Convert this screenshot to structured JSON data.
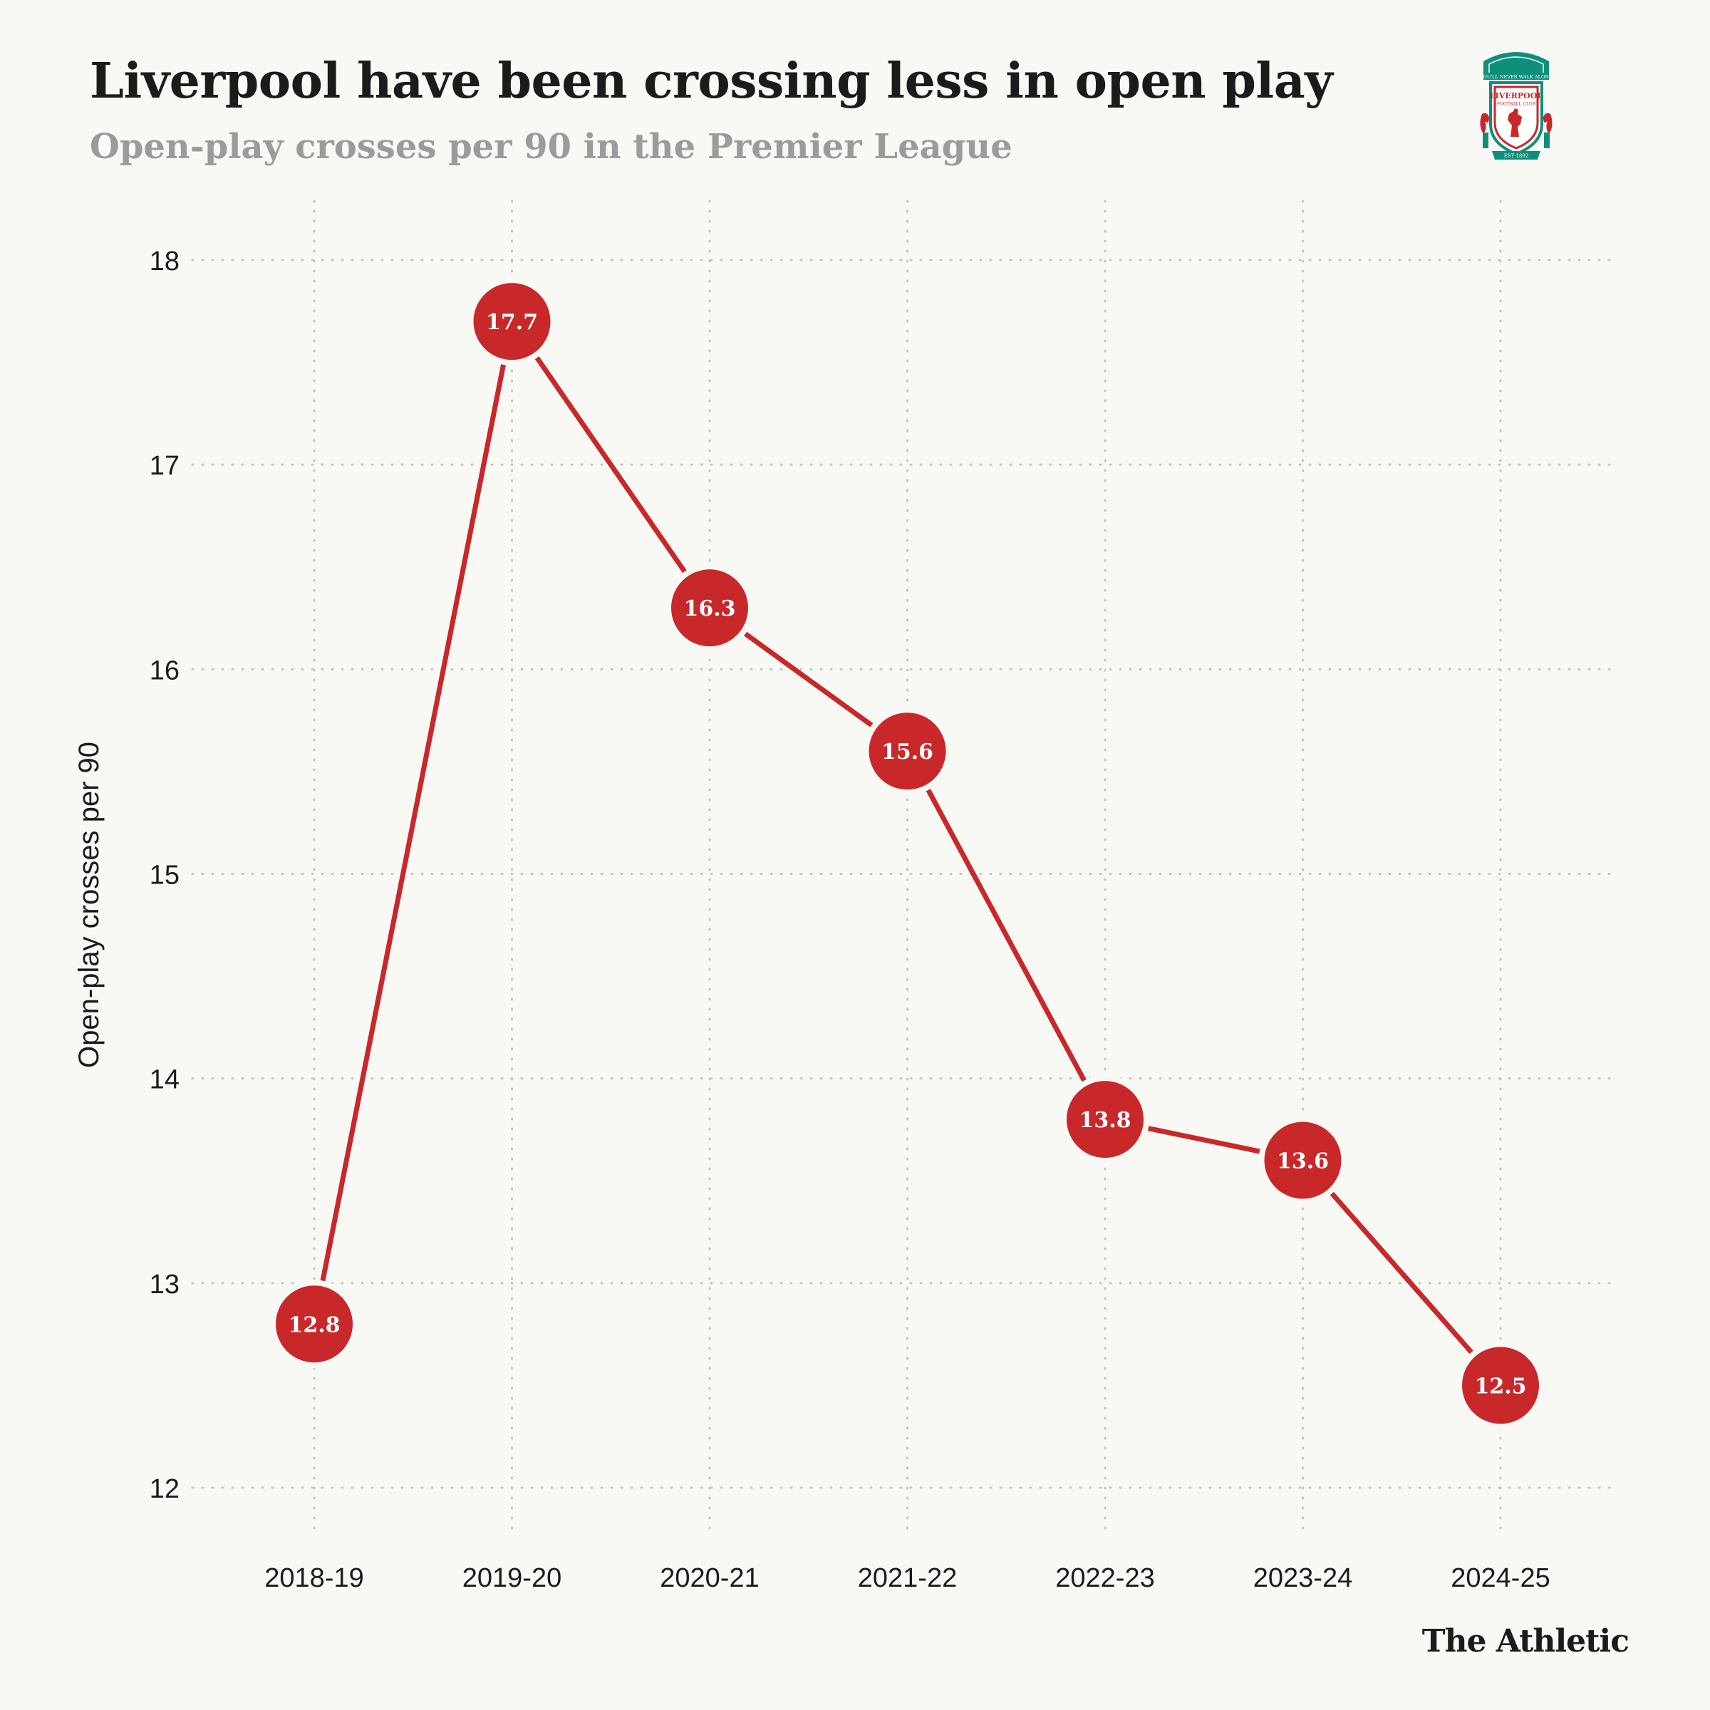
{
  "header": {
    "title": "Liverpool have been crossing less in open play",
    "subtitle": "Open-play crosses per 90 in the Premier League"
  },
  "crest": {
    "icon": "liverpool-fc-crest-icon",
    "motto": "YOU'LL NEVER WALK ALONE",
    "name": "LIVERPOOL",
    "sub": "FOOTBALL CLUB",
    "est": "EST·1892"
  },
  "brand": "The Athletic",
  "colors": {
    "background": "#f8f8f5",
    "line": "#c8282a",
    "marker": "#c8282a",
    "marker_text": "#ffffff",
    "grid": "#c4c4c4"
  },
  "chart_data": {
    "type": "line",
    "title": "Liverpool have been crossing less in open play",
    "subtitle": "Open-play crosses per 90 in the Premier League",
    "xlabel": "",
    "ylabel": "Open-play crosses per 90",
    "categories": [
      "2018-19",
      "2019-20",
      "2020-21",
      "2021-22",
      "2022-23",
      "2023-24",
      "2024-25"
    ],
    "series": [
      {
        "values": [
          12.8,
          17.7,
          16.3,
          15.6,
          13.8,
          13.6,
          12.5
        ],
        "labels": [
          "12.8",
          "17.7",
          "16.3",
          "15.6",
          "13.8",
          "13.6",
          "12.5"
        ]
      }
    ],
    "yticks": [
      12,
      13,
      14,
      15,
      16,
      17,
      18
    ],
    "ytick_labels": [
      "12",
      "13",
      "14",
      "15",
      "16",
      "17",
      "18"
    ],
    "ylim": [
      12,
      18
    ],
    "grid": true,
    "grid_style": "dotted",
    "legend": "none",
    "data_labels": "inside markers"
  }
}
